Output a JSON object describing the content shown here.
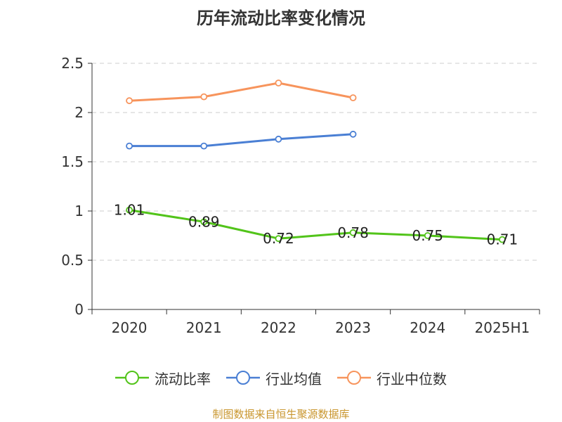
{
  "chart_data": {
    "type": "line",
    "title": "历年流动比率变化情况",
    "categories": [
      "2020",
      "2021",
      "2022",
      "2023",
      "2024",
      "2025H1"
    ],
    "ylim": [
      0,
      2.5
    ],
    "yticks": [
      "0",
      "0.5",
      "1",
      "1.5",
      "2",
      "2.5"
    ],
    "grid": true,
    "legend_position": "bottom",
    "series": [
      {
        "name": "流动比率",
        "color": "#52c41a",
        "values": [
          1.01,
          0.89,
          0.72,
          0.78,
          0.75,
          0.71
        ],
        "labels": [
          "1.01",
          "0.89",
          "0.72",
          "0.78",
          "0.75",
          "0.71"
        ]
      },
      {
        "name": "行业均值",
        "color": "#4a7fd4",
        "values": [
          1.66,
          1.66,
          1.73,
          1.78,
          null,
          null
        ]
      },
      {
        "name": "行业中位数",
        "color": "#f7945c",
        "values": [
          2.12,
          2.16,
          2.3,
          2.15,
          null,
          null
        ]
      }
    ]
  },
  "footer": {
    "source": "制图数据来自恒生聚源数据库"
  }
}
